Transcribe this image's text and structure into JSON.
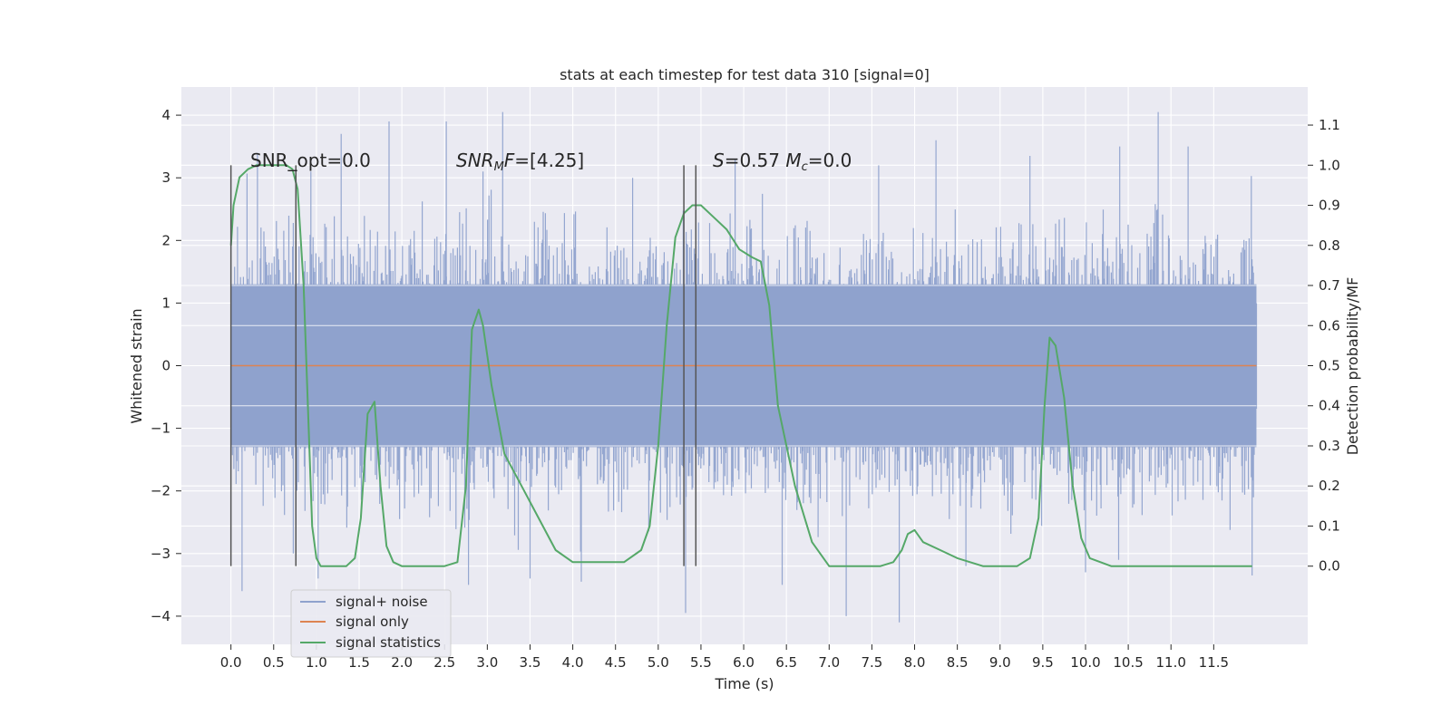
{
  "chart_data": {
    "type": "line",
    "title": "stats at each timestep for test data 310 [signal=0]",
    "xlabel": "Time (s)",
    "ylabel": "Whitened strain",
    "y2label": "Detection probability/MF",
    "xlim": [
      -0.58,
      12.6
    ],
    "ylim": [
      -4.45,
      4.45
    ],
    "y2lim": [
      -0.195,
      1.195
    ],
    "xticks": [
      "0.0",
      "0.5",
      "1.0",
      "1.5",
      "2.0",
      "2.5",
      "3.0",
      "3.5",
      "4.0",
      "4.5",
      "5.0",
      "5.5",
      "6.0",
      "6.5",
      "7.0",
      "7.5",
      "8.0",
      "8.5",
      "9.0",
      "9.5",
      "10.0",
      "10.5",
      "11.0",
      "11.5"
    ],
    "yticks": [
      -4,
      -3,
      -2,
      -1,
      0,
      1,
      2,
      3,
      4
    ],
    "y2ticks": [
      "0.0",
      "0.1",
      "0.2",
      "0.3",
      "0.4",
      "0.5",
      "0.6",
      "0.7",
      "0.8",
      "0.9",
      "1.0",
      "1.1"
    ],
    "grid": true,
    "legend_position": "lower-left",
    "annotations": [
      {
        "text": "SNR_opt=0.0",
        "x": 0.2,
        "y": 3.3
      },
      {
        "text": "SNR_MF=[4.25]",
        "x": 2.6,
        "y": 3.3
      },
      {
        "text": "S=0.57   M_c=0.0",
        "x": 5.6,
        "y": 3.3
      }
    ],
    "vertical_markers": [
      {
        "x": 0.0,
        "y_range": [
          -3.2,
          3.2
        ]
      },
      {
        "x": 0.76,
        "y_range": [
          -3.2,
          3.2
        ]
      },
      {
        "x": 5.3,
        "y_range": [
          -3.2,
          3.2
        ]
      },
      {
        "x": 5.44,
        "y_range": [
          -3.2,
          3.2
        ]
      }
    ],
    "series": [
      {
        "name": "signal+ noise",
        "color": "#8fa2cd",
        "axis": "left",
        "description_values": {
          "x_range": [
            0.0,
            12.0
          ],
          "typical_band": [
            -2.0,
            2.0
          ],
          "spikes": [
            [
              0.13,
              -3.6
            ],
            [
              0.31,
              3.4
            ],
            [
              0.73,
              -3.0
            ],
            [
              1.02,
              -3.4
            ],
            [
              1.29,
              3.7
            ],
            [
              1.85,
              3.9
            ],
            [
              2.52,
              3.9
            ],
            [
              2.78,
              -3.5
            ],
            [
              2.95,
              3.1
            ],
            [
              3.18,
              4.05
            ],
            [
              3.5,
              -3.4
            ],
            [
              4.1,
              -3.45
            ],
            [
              4.7,
              3.0
            ],
            [
              5.32,
              -3.95
            ],
            [
              5.9,
              3.3
            ],
            [
              6.45,
              -3.5
            ],
            [
              7.2,
              -4.0
            ],
            [
              7.58,
              3.2
            ],
            [
              7.82,
              -4.1
            ],
            [
              8.25,
              3.6
            ],
            [
              8.6,
              -3.2
            ],
            [
              9.35,
              3.35
            ],
            [
              10.0,
              -3.3
            ],
            [
              10.4,
              3.5
            ],
            [
              10.85,
              4.05
            ],
            [
              11.2,
              3.5
            ],
            [
              11.95,
              -3.35
            ]
          ]
        }
      },
      {
        "name": "signal only",
        "color": "#dd8452",
        "axis": "left",
        "x": [
          0.0,
          12.0
        ],
        "y": [
          0.0,
          0.0
        ]
      },
      {
        "name": "signal statistics",
        "color": "#55a868",
        "axis": "right",
        "x": [
          0.0,
          0.03,
          0.1,
          0.2,
          0.3,
          0.5,
          0.65,
          0.72,
          0.78,
          0.85,
          0.9,
          0.95,
          1.0,
          1.05,
          1.2,
          1.35,
          1.45,
          1.52,
          1.6,
          1.68,
          1.75,
          1.82,
          1.9,
          2.0,
          2.2,
          2.5,
          2.65,
          2.75,
          2.82,
          2.9,
          2.95,
          3.05,
          3.2,
          3.4,
          3.6,
          3.8,
          4.0,
          4.2,
          4.4,
          4.6,
          4.8,
          4.9,
          5.0,
          5.1,
          5.2,
          5.3,
          5.4,
          5.5,
          5.65,
          5.8,
          5.95,
          6.1,
          6.2,
          6.3,
          6.4,
          6.6,
          6.8,
          7.0,
          7.3,
          7.6,
          7.75,
          7.85,
          7.92,
          8.0,
          8.1,
          8.3,
          8.5,
          8.8,
          9.2,
          9.35,
          9.45,
          9.52,
          9.58,
          9.65,
          9.75,
          9.85,
          9.95,
          10.05,
          10.3,
          10.8,
          11.5,
          11.95
        ],
        "y": [
          0.8,
          0.9,
          0.97,
          0.99,
          1.0,
          1.0,
          1.0,
          0.99,
          0.94,
          0.7,
          0.4,
          0.1,
          0.02,
          0.0,
          0.0,
          0.0,
          0.02,
          0.12,
          0.38,
          0.41,
          0.2,
          0.05,
          0.01,
          0.0,
          0.0,
          0.0,
          0.01,
          0.2,
          0.59,
          0.64,
          0.6,
          0.45,
          0.28,
          0.2,
          0.12,
          0.04,
          0.01,
          0.01,
          0.01,
          0.01,
          0.04,
          0.1,
          0.3,
          0.6,
          0.82,
          0.88,
          0.9,
          0.9,
          0.87,
          0.84,
          0.79,
          0.77,
          0.76,
          0.65,
          0.4,
          0.2,
          0.06,
          0.0,
          0.0,
          0.0,
          0.01,
          0.04,
          0.08,
          0.09,
          0.06,
          0.04,
          0.02,
          0.0,
          0.0,
          0.02,
          0.12,
          0.4,
          0.57,
          0.55,
          0.42,
          0.2,
          0.07,
          0.02,
          0.0,
          0.0,
          0.0,
          0.0
        ]
      }
    ]
  }
}
